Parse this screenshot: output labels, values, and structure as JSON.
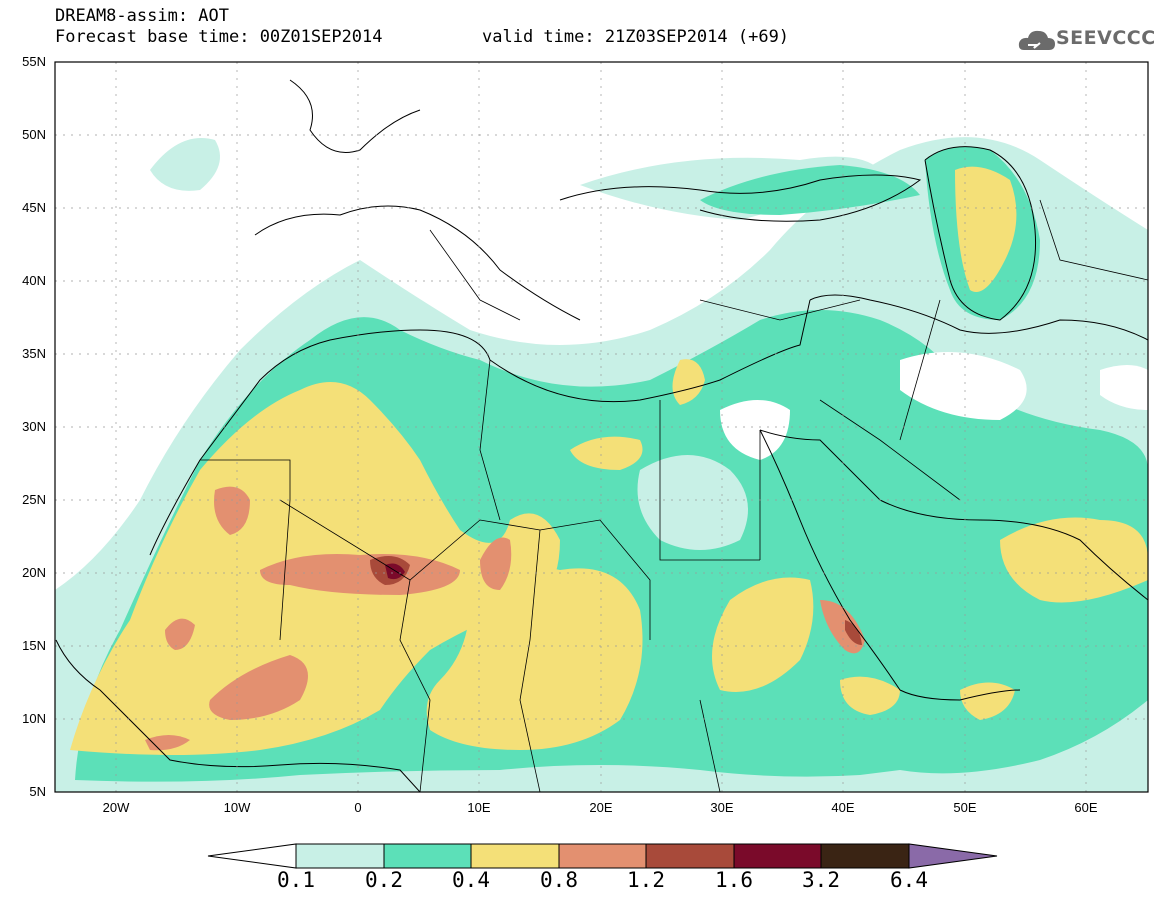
{
  "header": {
    "title_line1": "DREAM8-assim: AOT",
    "title_line2": "Forecast base time: 00Z01SEP2014",
    "valid_time": "valid time: 21Z03SEP2014 (+69)",
    "logo_text": "SEEVCCC"
  },
  "map": {
    "lat_labels": [
      "55N",
      "50N",
      "45N",
      "40N",
      "35N",
      "30N",
      "25N",
      "20N",
      "15N",
      "10N",
      "5N"
    ],
    "lon_labels": [
      "20W",
      "10W",
      "0",
      "10E",
      "20E",
      "30E",
      "40E",
      "50E",
      "60E"
    ],
    "extent": {
      "lon_min": -25,
      "lon_max": 65,
      "lat_min": 5,
      "lat_max": 55
    },
    "colors": {
      "c1": "#c8f0e6",
      "c2": "#5ce0b8",
      "c3": "#f4e078",
      "c4": "#e39070",
      "c5": "#a84a3a",
      "c6": "#7a0a2a",
      "c7": "#3a2414",
      "c8": "#8a6aa8"
    }
  },
  "colorbar": {
    "labels": [
      "0.1",
      "0.2",
      "0.4",
      "0.8",
      "1.2",
      "1.6",
      "3.2",
      "6.4"
    ],
    "colors": [
      "#c8f0e6",
      "#5ce0b8",
      "#f4e078",
      "#e39070",
      "#a84a3a",
      "#7a0a2a",
      "#3a2414"
    ],
    "under_color": "#ffffff",
    "over_color": "#8a6aa8"
  }
}
